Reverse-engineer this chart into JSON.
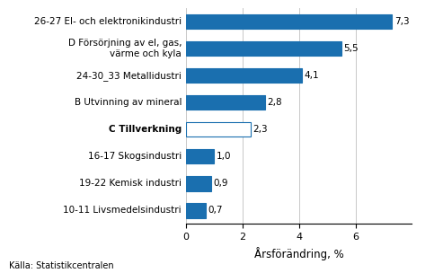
{
  "categories": [
    "10-11 Livsmedelsindustri",
    "19-22 Kemisk industri",
    "16-17 Skogsindustri",
    "C Tillverkning",
    "B Utvinning av mineral",
    "24-30_33 Metallidustri",
    "D Försörjning av el, gas,\nvärme och kyla",
    "26-27 El- och elektronikindustri"
  ],
  "values": [
    0.7,
    0.9,
    1.0,
    2.3,
    2.8,
    4.1,
    5.5,
    7.3
  ],
  "bar_colors": [
    "#1a6faf",
    "#1a6faf",
    "#1a6faf",
    "#ffffff",
    "#1a6faf",
    "#1a6faf",
    "#1a6faf",
    "#1a6faf"
  ],
  "bar_edgecolors": [
    "#1a6faf",
    "#1a6faf",
    "#1a6faf",
    "#1a6faf",
    "#1a6faf",
    "#1a6faf",
    "#1a6faf",
    "#1a6faf"
  ],
  "bold_labels": [
    false,
    false,
    false,
    true,
    false,
    false,
    false,
    false
  ],
  "value_labels": [
    "0,7",
    "0,9",
    "1,0",
    "2,3",
    "2,8",
    "4,1",
    "5,5",
    "7,3"
  ],
  "xlabel": "Årsförändring, %",
  "xlim": [
    0,
    8
  ],
  "xticks": [
    0,
    2,
    4,
    6
  ],
  "source": "Källa: Statistikcentralen",
  "background_color": "#ffffff",
  "grid_color": "#c8c8c8",
  "bar_height": 0.55,
  "label_fontsize": 7.5,
  "value_fontsize": 7.5,
  "xlabel_fontsize": 8.5,
  "source_fontsize": 7.0
}
